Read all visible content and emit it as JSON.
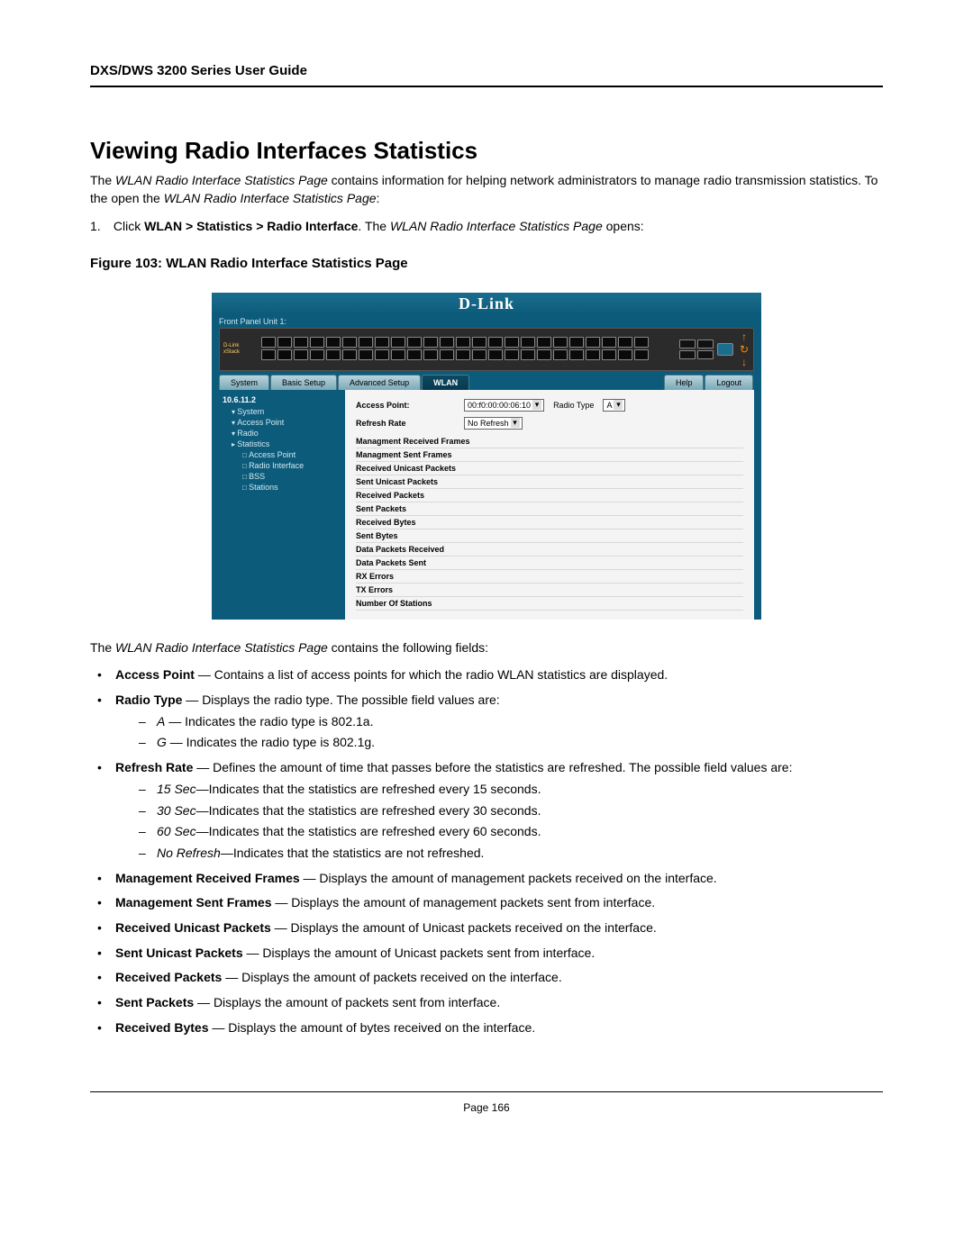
{
  "doc": {
    "header": "DXS/DWS 3200 Series User Guide",
    "title": "Viewing Radio Interfaces Statistics",
    "intro_pre": "The ",
    "intro_page_name": "WLAN Radio Interface Statistics Page",
    "intro_post": " contains information for helping network administrators to manage radio transmission statistics. To the open the ",
    "intro_post2": ":",
    "step_num": "1.",
    "step_pre": "Click ",
    "step_path": "WLAN > Statistics > Radio Interface",
    "step_mid": ".  The ",
    "step_post": " opens:",
    "figure_caption": "Figure 103: WLAN Radio Interface Statistics Page",
    "post_text_pre": "The ",
    "post_text_post": " contains the following fields:",
    "page_footer": "Page 166"
  },
  "screenshot": {
    "brand": "D-Link",
    "front_panel": "Front Panel Unit 1:",
    "switch_model_a": "D-Link",
    "switch_model_b": "xStack",
    "menu": {
      "system": "System",
      "basic": "Basic Setup",
      "advanced": "Advanced Setup",
      "wlan": "WLAN",
      "help": "Help",
      "logout": "Logout"
    },
    "sidebar": {
      "ip": "10.6.11.2",
      "items": [
        "System",
        "Access Point",
        "Radio",
        "Statistics"
      ],
      "sub": [
        "Access Point",
        "Radio Interface",
        "BSS",
        "Stations"
      ]
    },
    "controls": {
      "ap_label": "Access Point:",
      "ap_value": "00:f0:00:00:06:10",
      "rt_label": "Radio Type",
      "rt_value": "A",
      "rr_label": "Refresh Rate",
      "rr_value": "No Refresh"
    },
    "stats": [
      "Managment Received Frames",
      "Managment Sent Frames",
      "Received Unicast Packets",
      "Sent Unicast Packets",
      "Received Packets",
      "Sent Packets",
      "Received Bytes",
      "Sent Bytes",
      "Data Packets Received",
      "Data Packets Sent",
      "RX Errors",
      "TX Errors",
      "Number Of Stations"
    ]
  },
  "fields": {
    "access_point": {
      "name": "Access Point",
      "desc": " — Contains a list of access points for which the radio WLAN statistics are displayed."
    },
    "radio_type": {
      "name": "Radio Type",
      "desc": " — Displays the radio type. The possible field values are:",
      "a_name": "A",
      "a_desc": " — Indicates the radio type is 802.1a.",
      "g_name": "G",
      "g_desc": " — Indicates the radio type is 802.1g."
    },
    "refresh_rate": {
      "name": "Refresh Rate",
      "desc": " — Defines the amount of time that passes before the statistics are refreshed. The possible field values are:",
      "r15_name": "15 Sec",
      "r15_desc": "—Indicates that the statistics are refreshed every 15 seconds.",
      "r30_name": "30 Sec",
      "r30_desc": "—Indicates that the statistics are refreshed every 30 seconds.",
      "r60_name": "60 Sec",
      "r60_desc": "—Indicates that the statistics are refreshed every 60 seconds.",
      "rno_name": "No Refresh",
      "rno_desc": "—Indicates that the statistics are not refreshed."
    },
    "mrf": {
      "name": "Management Received Frames",
      "desc": " — Displays the amount of management packets received on the interface."
    },
    "msf": {
      "name": "Management Sent Frames",
      "desc": " — Displays the amount of management packets sent from interface."
    },
    "rup": {
      "name": "Received Unicast Packets",
      "desc": " — Displays the amount of Unicast packets received on the interface."
    },
    "sup": {
      "name": "Sent Unicast Packets",
      "desc": " — Displays the amount of Unicast packets sent from interface."
    },
    "rp": {
      "name": "Received Packets",
      "desc": " — Displays the amount of packets received on the interface."
    },
    "sp": {
      "name": "Sent Packets",
      "desc": " — Displays the amount of packets sent from interface."
    },
    "rb": {
      "name": "Received Bytes",
      "desc": " — Displays the amount of bytes received on the interface."
    }
  }
}
